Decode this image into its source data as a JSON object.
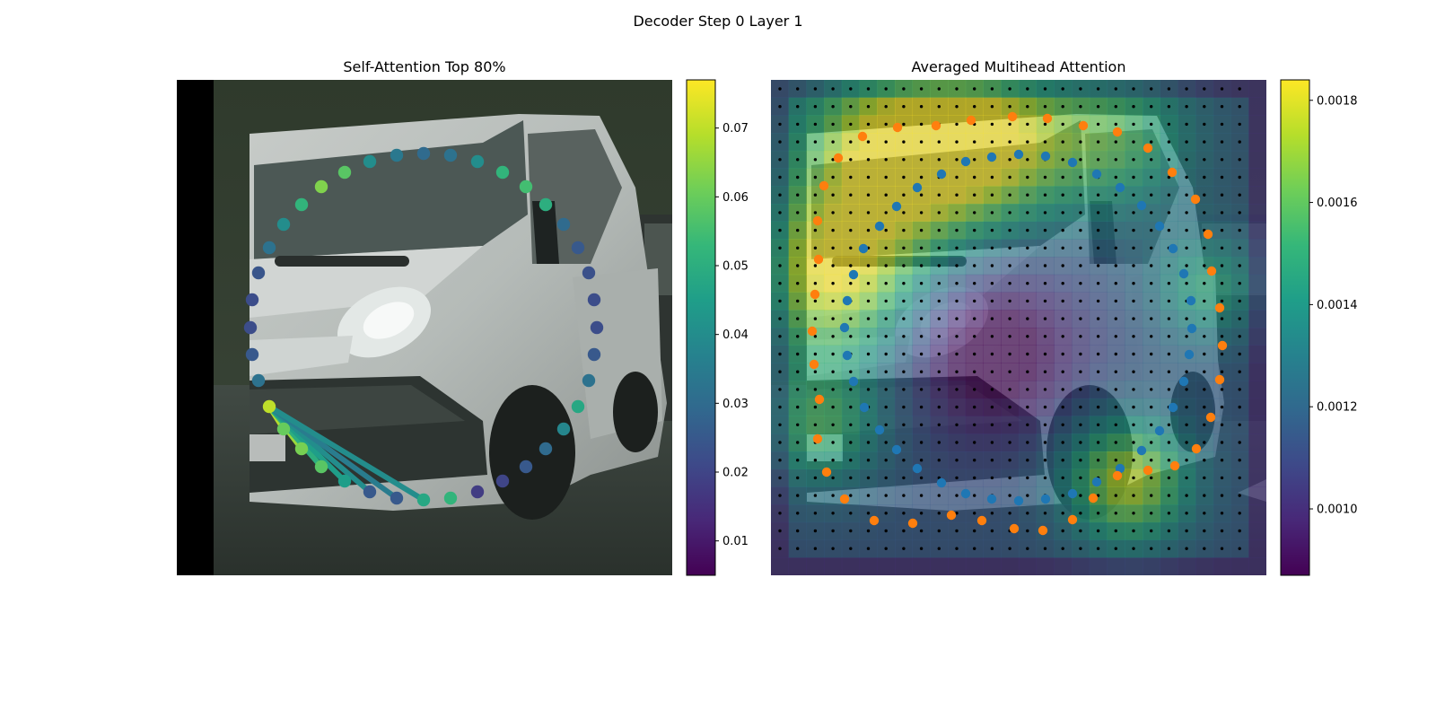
{
  "figure": {
    "suptitle": "Decoder Step 0 Layer 1"
  },
  "colors": {
    "viridis": [
      "#440154",
      "#482878",
      "#3e4989",
      "#31688e",
      "#26828e",
      "#1f9e89",
      "#35b779",
      "#6ece58",
      "#b5de2b",
      "#fde725"
    ],
    "query_points": "#1f77b4",
    "ref_points": "#ff7f0e",
    "grid_dots": "#000000"
  },
  "chart_data": [
    {
      "type": "scatter",
      "title": "Self-Attention Top 80%",
      "background": "photo of white van (camera image)",
      "colorbar": {
        "min": 0.005,
        "max": 0.077,
        "ticks": [
          "0.01",
          "0.02",
          "0.03",
          "0.04",
          "0.05",
          "0.06",
          "0.07"
        ],
        "tick_values": [
          0.01,
          0.02,
          0.03,
          0.04,
          0.05,
          0.06,
          0.07
        ]
      },
      "points": [
        {
          "x": 300,
          "y": 453,
          "v": 0.07
        },
        {
          "x": 316,
          "y": 478,
          "v": 0.06
        },
        {
          "x": 336,
          "y": 500,
          "v": 0.062
        },
        {
          "x": 358,
          "y": 520,
          "v": 0.058
        },
        {
          "x": 384,
          "y": 536,
          "v": 0.045
        },
        {
          "x": 412,
          "y": 548,
          "v": 0.025
        },
        {
          "x": 442,
          "y": 555,
          "v": 0.025
        },
        {
          "x": 472,
          "y": 557,
          "v": 0.048
        },
        {
          "x": 502,
          "y": 555,
          "v": 0.052
        },
        {
          "x": 532,
          "y": 548,
          "v": 0.018
        },
        {
          "x": 560,
          "y": 536,
          "v": 0.02
        },
        {
          "x": 586,
          "y": 520,
          "v": 0.025
        },
        {
          "x": 608,
          "y": 500,
          "v": 0.03
        },
        {
          "x": 628,
          "y": 478,
          "v": 0.038
        },
        {
          "x": 644,
          "y": 453,
          "v": 0.048
        },
        {
          "x": 656,
          "y": 424,
          "v": 0.032
        },
        {
          "x": 662,
          "y": 395,
          "v": 0.025
        },
        {
          "x": 665,
          "y": 365,
          "v": 0.022
        },
        {
          "x": 662,
          "y": 334,
          "v": 0.022
        },
        {
          "x": 656,
          "y": 304,
          "v": 0.023
        },
        {
          "x": 644,
          "y": 276,
          "v": 0.025
        },
        {
          "x": 628,
          "y": 250,
          "v": 0.03
        },
        {
          "x": 608,
          "y": 228,
          "v": 0.05
        },
        {
          "x": 586,
          "y": 208,
          "v": 0.055
        },
        {
          "x": 560,
          "y": 192,
          "v": 0.052
        },
        {
          "x": 532,
          "y": 180,
          "v": 0.04
        },
        {
          "x": 502,
          "y": 173,
          "v": 0.032
        },
        {
          "x": 472,
          "y": 171,
          "v": 0.03
        },
        {
          "x": 442,
          "y": 173,
          "v": 0.034
        },
        {
          "x": 412,
          "y": 180,
          "v": 0.04
        },
        {
          "x": 384,
          "y": 192,
          "v": 0.058
        },
        {
          "x": 358,
          "y": 208,
          "v": 0.063
        },
        {
          "x": 336,
          "y": 228,
          "v": 0.052
        },
        {
          "x": 316,
          "y": 250,
          "v": 0.04
        },
        {
          "x": 300,
          "y": 276,
          "v": 0.032
        },
        {
          "x": 288,
          "y": 304,
          "v": 0.024
        },
        {
          "x": 281,
          "y": 334,
          "v": 0.022
        },
        {
          "x": 279,
          "y": 365,
          "v": 0.022
        },
        {
          "x": 281,
          "y": 395,
          "v": 0.025
        },
        {
          "x": 288,
          "y": 424,
          "v": 0.032
        }
      ],
      "links": [
        {
          "to": 1,
          "v": 0.07
        },
        {
          "to": 2,
          "v": 0.066
        },
        {
          "to": 3,
          "v": 0.05
        },
        {
          "to": 4,
          "v": 0.045
        },
        {
          "to": 5,
          "v": 0.04
        },
        {
          "to": 6,
          "v": 0.035
        },
        {
          "to": 7,
          "v": 0.04
        }
      ]
    },
    {
      "type": "heatmap",
      "title": "Averaged Multihead Attention",
      "background": "photo of white van with attention heatmap overlay",
      "colorbar": {
        "min": 0.00087,
        "max": 0.00184,
        "ticks": [
          "0.0010",
          "0.0012",
          "0.0014",
          "0.0016",
          "0.0018"
        ],
        "tick_values": [
          0.001,
          0.0012,
          0.0014,
          0.0016,
          0.0018
        ]
      },
      "grid": {
        "cols": 28,
        "rows": 28
      },
      "hotspots": [
        {
          "cx": 0.25,
          "cy": 0.15,
          "s": 0.14,
          "a": 1.0
        },
        {
          "cx": 0.12,
          "cy": 0.4,
          "s": 0.12,
          "a": 0.85
        },
        {
          "cx": 0.1,
          "cy": 0.7,
          "s": 0.09,
          "a": 0.55
        },
        {
          "cx": 0.72,
          "cy": 0.81,
          "s": 0.09,
          "a": 0.85
        },
        {
          "cx": 0.88,
          "cy": 0.42,
          "s": 0.08,
          "a": 0.45
        },
        {
          "cx": 0.7,
          "cy": 0.12,
          "s": 0.11,
          "a": 0.55
        },
        {
          "cx": 0.45,
          "cy": 0.12,
          "s": 0.12,
          "a": 0.75
        }
      ],
      "query_points": [
        [
          1049,
          194
        ],
        [
          1076,
          180
        ],
        [
          1105,
          175
        ],
        [
          1135,
          172
        ],
        [
          1165,
          174
        ],
        [
          1195,
          181
        ],
        [
          1222,
          194
        ],
        [
          1248,
          209
        ],
        [
          1272,
          229
        ],
        [
          1292,
          252
        ],
        [
          1307,
          277
        ],
        [
          1319,
          305
        ],
        [
          1327,
          335
        ],
        [
          1328,
          366
        ],
        [
          1325,
          395
        ],
        [
          1319,
          425
        ],
        [
          1307,
          454
        ],
        [
          1292,
          480
        ],
        [
          1272,
          502
        ],
        [
          1248,
          522
        ],
        [
          1222,
          537
        ],
        [
          1195,
          550
        ],
        [
          1165,
          556
        ],
        [
          1135,
          558
        ],
        [
          1105,
          556
        ],
        [
          1076,
          550
        ],
        [
          1049,
          538
        ],
        [
          1022,
          522
        ],
        [
          999,
          501
        ],
        [
          980,
          479
        ],
        [
          963,
          454
        ],
        [
          951,
          425
        ],
        [
          944,
          396
        ],
        [
          941,
          365
        ],
        [
          944,
          335
        ],
        [
          951,
          306
        ],
        [
          962,
          277
        ],
        [
          980,
          252
        ],
        [
          999,
          230
        ],
        [
          1022,
          209
        ]
      ],
      "ref_points": [
        [
          934,
          176
        ],
        [
          961,
          152
        ],
        [
          1000,
          142
        ],
        [
          1043,
          140
        ],
        [
          1082,
          134
        ],
        [
          1128,
          130
        ],
        [
          1167,
          132
        ],
        [
          1207,
          140
        ],
        [
          1245,
          147
        ],
        [
          1279,
          165
        ],
        [
          1306,
          192
        ],
        [
          1332,
          222
        ],
        [
          1346,
          261
        ],
        [
          1350,
          302
        ],
        [
          1359,
          343
        ],
        [
          1362,
          385
        ],
        [
          1359,
          423
        ],
        [
          1349,
          465
        ],
        [
          1333,
          500
        ],
        [
          1309,
          519
        ],
        [
          1279,
          524
        ],
        [
          1245,
          530
        ],
        [
          1218,
          555
        ],
        [
          1195,
          579
        ],
        [
          1162,
          591
        ],
        [
          1130,
          589
        ],
        [
          1094,
          580
        ],
        [
          1060,
          574
        ],
        [
          1017,
          583
        ],
        [
          974,
          580
        ],
        [
          941,
          556
        ],
        [
          921,
          526
        ],
        [
          911,
          489
        ],
        [
          913,
          445
        ],
        [
          907,
          406
        ],
        [
          905,
          369
        ],
        [
          908,
          328
        ],
        [
          912,
          289
        ],
        [
          911,
          246
        ],
        [
          918,
          207
        ]
      ]
    }
  ]
}
